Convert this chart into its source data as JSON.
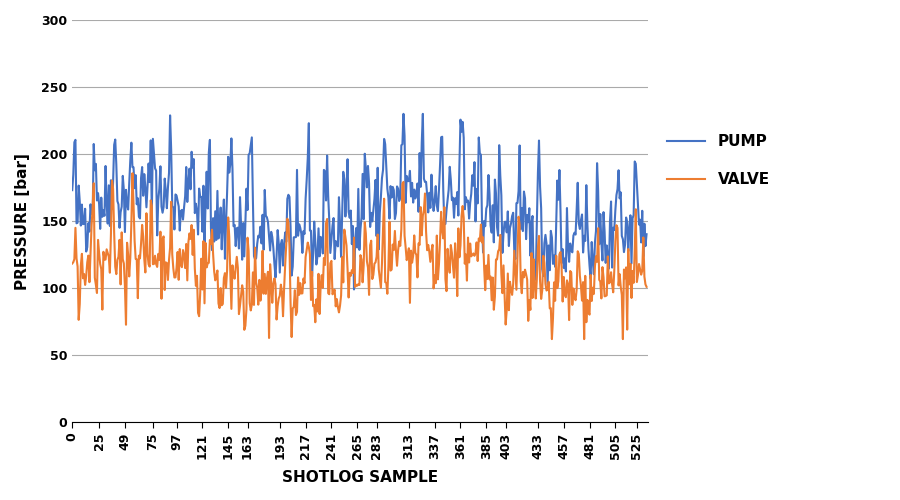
{
  "title": "",
  "xlabel": "SHOTLOG SAMPLE",
  "ylabel": "PRESSURE [bar]",
  "pump_color": "#4472C4",
  "valve_color": "#ED7D31",
  "ylim": [
    0,
    300
  ],
  "yticks": [
    0,
    50,
    100,
    150,
    200,
    250,
    300
  ],
  "xticks": [
    0,
    25,
    49,
    75,
    97,
    121,
    145,
    163,
    193,
    217,
    241,
    265,
    283,
    313,
    337,
    361,
    385,
    403,
    433,
    457,
    481,
    505,
    525
  ],
  "legend_labels": [
    "PUMP",
    "VALVE"
  ],
  "n_points": 535,
  "background_color": "#ffffff",
  "grid_color": "#aaaaaa",
  "line_width": 1.5
}
